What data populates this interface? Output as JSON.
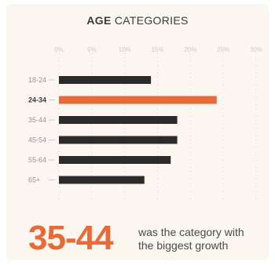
{
  "chart_data": {
    "type": "bar",
    "orientation": "horizontal",
    "title_bold": "AGE",
    "title_rest": "CATEGORIES",
    "categories": [
      "18-24",
      "24-34",
      "35-44",
      "45-54",
      "55-64",
      "65+"
    ],
    "values": [
      14,
      24,
      18,
      18,
      17,
      13
    ],
    "highlight": "24-34",
    "xlim": [
      0,
      30
    ],
    "xticks": [
      "0%",
      "5%",
      "10%",
      "15%",
      "20%",
      "25%",
      "30%"
    ],
    "grid": true,
    "colors": {
      "bar": "#2b2b2b",
      "highlight": "#ea6a36"
    }
  },
  "callout": {
    "number": "35-44",
    "text_line1": "was the category with",
    "text_line2": "the biggest growth"
  }
}
